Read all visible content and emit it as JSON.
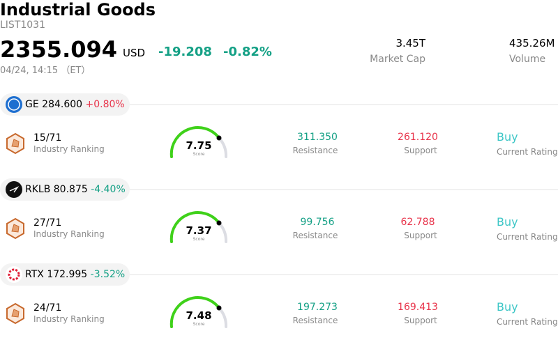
{
  "header": {
    "title": "Industrial Goods",
    "code": "LIST1031",
    "price": "2355.094",
    "currency": "USD",
    "change": "-19.208",
    "change_pct": "-0.82%",
    "time": "04/24, 14:15 （ET）",
    "market_cap": {
      "value": "3.45T",
      "label": "Market Cap"
    },
    "volume": {
      "value": "435.26M",
      "label": "Volume"
    }
  },
  "stocks": [
    {
      "ticker": "GE",
      "price": "284.600",
      "change": "+0.80%",
      "rank": "15/71",
      "rank_label": "Industry Ranking",
      "score": "7.75",
      "score_label": "Score",
      "resistance": "311.350",
      "resistance_label": "Resistance",
      "support": "261.120",
      "support_label": "Support",
      "rating": "Buy",
      "rating_label": "Current Rating"
    },
    {
      "ticker": "RKLB",
      "price": "80.875",
      "change": "-4.40%",
      "rank": "27/71",
      "rank_label": "Industry Ranking",
      "score": "7.37",
      "score_label": "Score",
      "resistance": "99.756",
      "resistance_label": "Resistance",
      "support": "62.788",
      "support_label": "Support",
      "rating": "Buy",
      "rating_label": "Current Rating"
    },
    {
      "ticker": "RTX",
      "price": "172.995",
      "change": "-3.52%",
      "rank": "24/71",
      "rank_label": "Industry Ranking",
      "score": "7.48",
      "score_label": "Score",
      "resistance": "197.273",
      "resistance_label": "Resistance",
      "support": "169.413",
      "support_label": "Support",
      "rating": "Buy",
      "rating_label": "Current Rating"
    }
  ]
}
